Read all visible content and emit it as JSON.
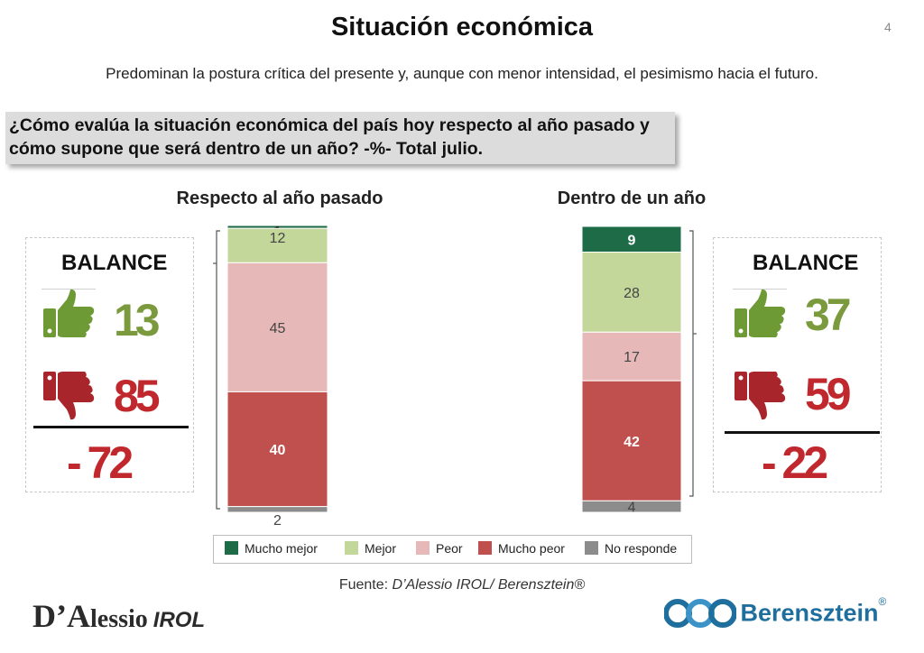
{
  "header": {
    "title": "Situación económica",
    "page_number": "4",
    "subtitle": "Predominan la postura crítica del presente y, aunque con menor intensidad, el pesimismo hacia el futuro.",
    "question": "¿Cómo evalúa la situación económica del país hoy respecto al año pasado y cómo supone que será dentro de un año? -%- Total julio."
  },
  "balance_left": {
    "label": "BALANCE",
    "positive": "13",
    "negative": "85",
    "result": "- 72"
  },
  "balance_right": {
    "label": "BALANCE",
    "positive": "37",
    "negative": "59",
    "result": "- 22"
  },
  "chart_data": {
    "type": "bar",
    "stacked": true,
    "orientation": "vertical",
    "categories": [
      "Respecto al año pasado",
      "Dentro de un año"
    ],
    "series": [
      {
        "name": "Mucho mejor",
        "color": "#1e6b48",
        "values": [
          1,
          9
        ]
      },
      {
        "name": "Mejor",
        "color": "#c4d79b",
        "values": [
          12,
          28
        ]
      },
      {
        "name": "Peor",
        "color": "#e6b8b7",
        "values": [
          45,
          17
        ]
      },
      {
        "name": "Mucho peor",
        "color": "#c0504d",
        "values": [
          40,
          42
        ]
      },
      {
        "name": "No responde",
        "color": "#8c8c8c",
        "values": [
          2,
          4
        ]
      }
    ],
    "stack_order_top_to_bottom": [
      "Mucho mejor",
      "Mejor",
      "Peor",
      "Mucho peor",
      "No responde"
    ],
    "ylim": [
      0,
      100
    ],
    "legend_position": "bottom",
    "grid": false
  },
  "legend": {
    "items": [
      "Mucho mejor",
      "Mejor",
      "Peor",
      "Mucho peor",
      "No responde"
    ]
  },
  "footer": {
    "source_prefix": "Fuente: ",
    "source_text": "D’Alessio IROL/ Berensztein®",
    "logo_dalessio_d": "D’",
    "logo_dalessio_a": "A",
    "logo_dalessio_rest": "lessio",
    "logo_dalessio_irol": "IROL",
    "logo_berensztein": "Berensztein",
    "logo_berensztein_reg": "®"
  },
  "colors": {
    "positive_green": "#7b9a3d",
    "negative_red": "#c0282d",
    "thumb_up": "#6e9a35",
    "thumb_down": "#a8262b",
    "berensztein_blue": "#1f6f9e"
  },
  "icons": [
    "thumbs-up-icon",
    "thumbs-down-icon",
    "berensztein-logo-icon"
  ]
}
